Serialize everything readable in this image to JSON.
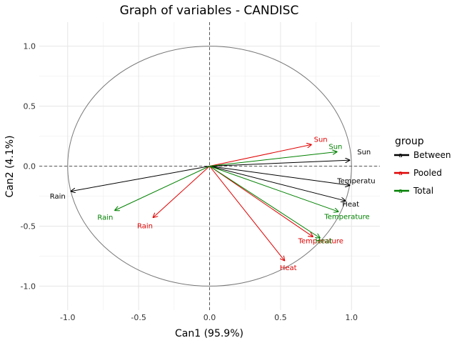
{
  "chart_data": {
    "type": "scatter",
    "title": "Graph of variables - CANDISC",
    "xlabel": "Can1 (95.9%)",
    "ylabel": "Can2 (4.1%)",
    "xlim": [
      -1.2,
      1.2
    ],
    "ylim": [
      -1.2,
      1.2
    ],
    "x_ticks": [
      -1.0,
      -0.5,
      0.0,
      0.5,
      1.0
    ],
    "y_ticks": [
      -1.0,
      -0.5,
      0.0,
      0.5,
      1.0
    ],
    "x_tick_labels": [
      "-1.0",
      "-0.5",
      "0.0",
      "0.5",
      "1.0"
    ],
    "y_tick_labels": [
      "-1.0",
      "-0.5",
      "0.0",
      "0.5",
      "1.0"
    ],
    "grid": true,
    "unit_circle": true,
    "reference_lines": "dashed at x=0 and y=0",
    "legend": {
      "title": "group",
      "placement": "right"
    },
    "series": [
      {
        "name": "Between",
        "color": "#000000",
        "vectors": [
          {
            "label": "Sun",
            "x": 0.99,
            "y": 0.05
          },
          {
            "label": "Temperatu",
            "x": 0.99,
            "y": -0.16
          },
          {
            "label": "Heat",
            "x": 0.96,
            "y": -0.29
          },
          {
            "label": "Rain",
            "x": -0.98,
            "y": -0.21
          }
        ]
      },
      {
        "name": "Pooled",
        "color": "#e00000",
        "vectors": [
          {
            "label": "Sun",
            "x": 0.72,
            "y": 0.18
          },
          {
            "label": "Temperature",
            "x": 0.73,
            "y": -0.59
          },
          {
            "label": "Heat",
            "x": 0.53,
            "y": -0.79
          },
          {
            "label": "Rain",
            "x": -0.4,
            "y": -0.43
          }
        ]
      },
      {
        "name": "Total",
        "color": "#008000",
        "vectors": [
          {
            "label": "Sun",
            "x": 0.9,
            "y": 0.12
          },
          {
            "label": "Temperature",
            "x": 0.91,
            "y": -0.38
          },
          {
            "label": "Heat",
            "x": 0.78,
            "y": -0.6
          },
          {
            "label": "Rain",
            "x": -0.67,
            "y": -0.37
          }
        ]
      }
    ]
  }
}
